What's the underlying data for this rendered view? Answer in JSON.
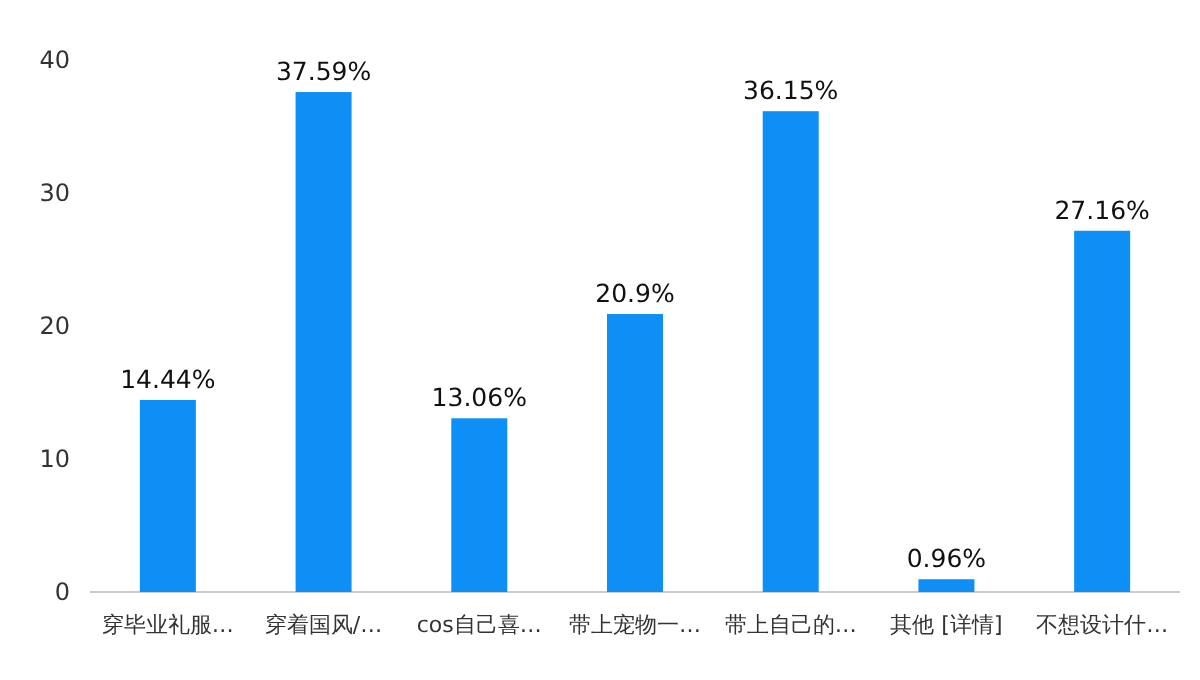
{
  "chart_data": {
    "type": "bar",
    "categories": [
      "穿毕业礼服…",
      "穿着国风/…",
      "cos自己喜…",
      "带上宠物一…",
      "带上自己的…",
      "其他 [详情]",
      "不想设计什…"
    ],
    "values": [
      14.44,
      37.59,
      13.06,
      20.9,
      36.15,
      0.96,
      27.16
    ],
    "value_labels": [
      "14.44%",
      "37.59%",
      "13.06%",
      "20.9%",
      "36.15%",
      "0.96%",
      "27.16%"
    ],
    "color": "#0d8ff5",
    "ylim": [
      0,
      40
    ],
    "yticks": [
      0,
      10,
      20,
      30,
      40
    ]
  }
}
